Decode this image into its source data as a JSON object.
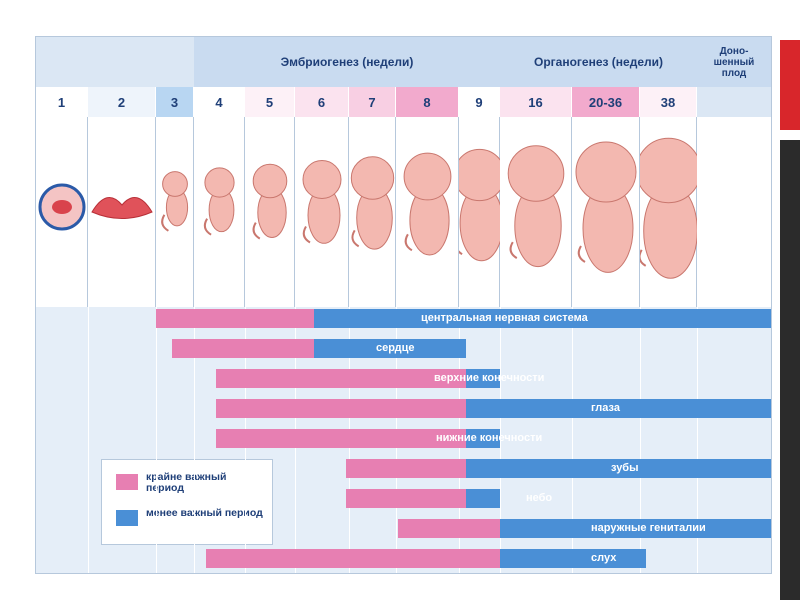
{
  "header": {
    "embryogenesis": "Эмбриогенез (недели)",
    "organogenesis": "Органогенез (недели)",
    "fullterm": "Доно-\nшенный\nплод"
  },
  "weeks": [
    "1",
    "2",
    "3",
    "4",
    "5",
    "6",
    "7",
    "8",
    "9",
    "16",
    "20-36",
    "38"
  ],
  "legend": {
    "critical": "крайне важный период",
    "less": "менее важный период"
  },
  "colors": {
    "critical": "#e77fb2",
    "less": "#4a8fd6",
    "header_bg": "#c9dbf0",
    "text": "#1f3f78"
  },
  "chart_data": {
    "type": "gantt",
    "columns": [
      "1",
      "2",
      "3",
      "4",
      "5",
      "6",
      "7",
      "8",
      "9",
      "16",
      "20-36",
      "38"
    ],
    "rows": [
      {
        "label": "центральная нервная система",
        "critical": [
          3,
          6
        ],
        "less": [
          6,
          38
        ]
      },
      {
        "label": "сердце",
        "critical": [
          3,
          6
        ],
        "less": [
          6,
          8
        ]
      },
      {
        "label": "верхние конечности",
        "critical": [
          4,
          8
        ],
        "less": [
          8,
          9
        ]
      },
      {
        "label": "глаза",
        "critical": [
          4,
          8
        ],
        "less": [
          8,
          38
        ]
      },
      {
        "label": "нижние конечности",
        "critical": [
          4,
          8
        ],
        "less": [
          8,
          9
        ]
      },
      {
        "label": "зубы",
        "critical": [
          6,
          8
        ],
        "less": [
          8,
          38
        ]
      },
      {
        "label": "небо",
        "critical": [
          6,
          8
        ],
        "less": [
          8,
          9
        ]
      },
      {
        "label": "наружные гениталии",
        "critical": [
          7,
          9
        ],
        "less": [
          9,
          38
        ]
      },
      {
        "label": "слух",
        "critical": [
          4,
          9
        ],
        "less": [
          9,
          20
        ]
      }
    ]
  }
}
